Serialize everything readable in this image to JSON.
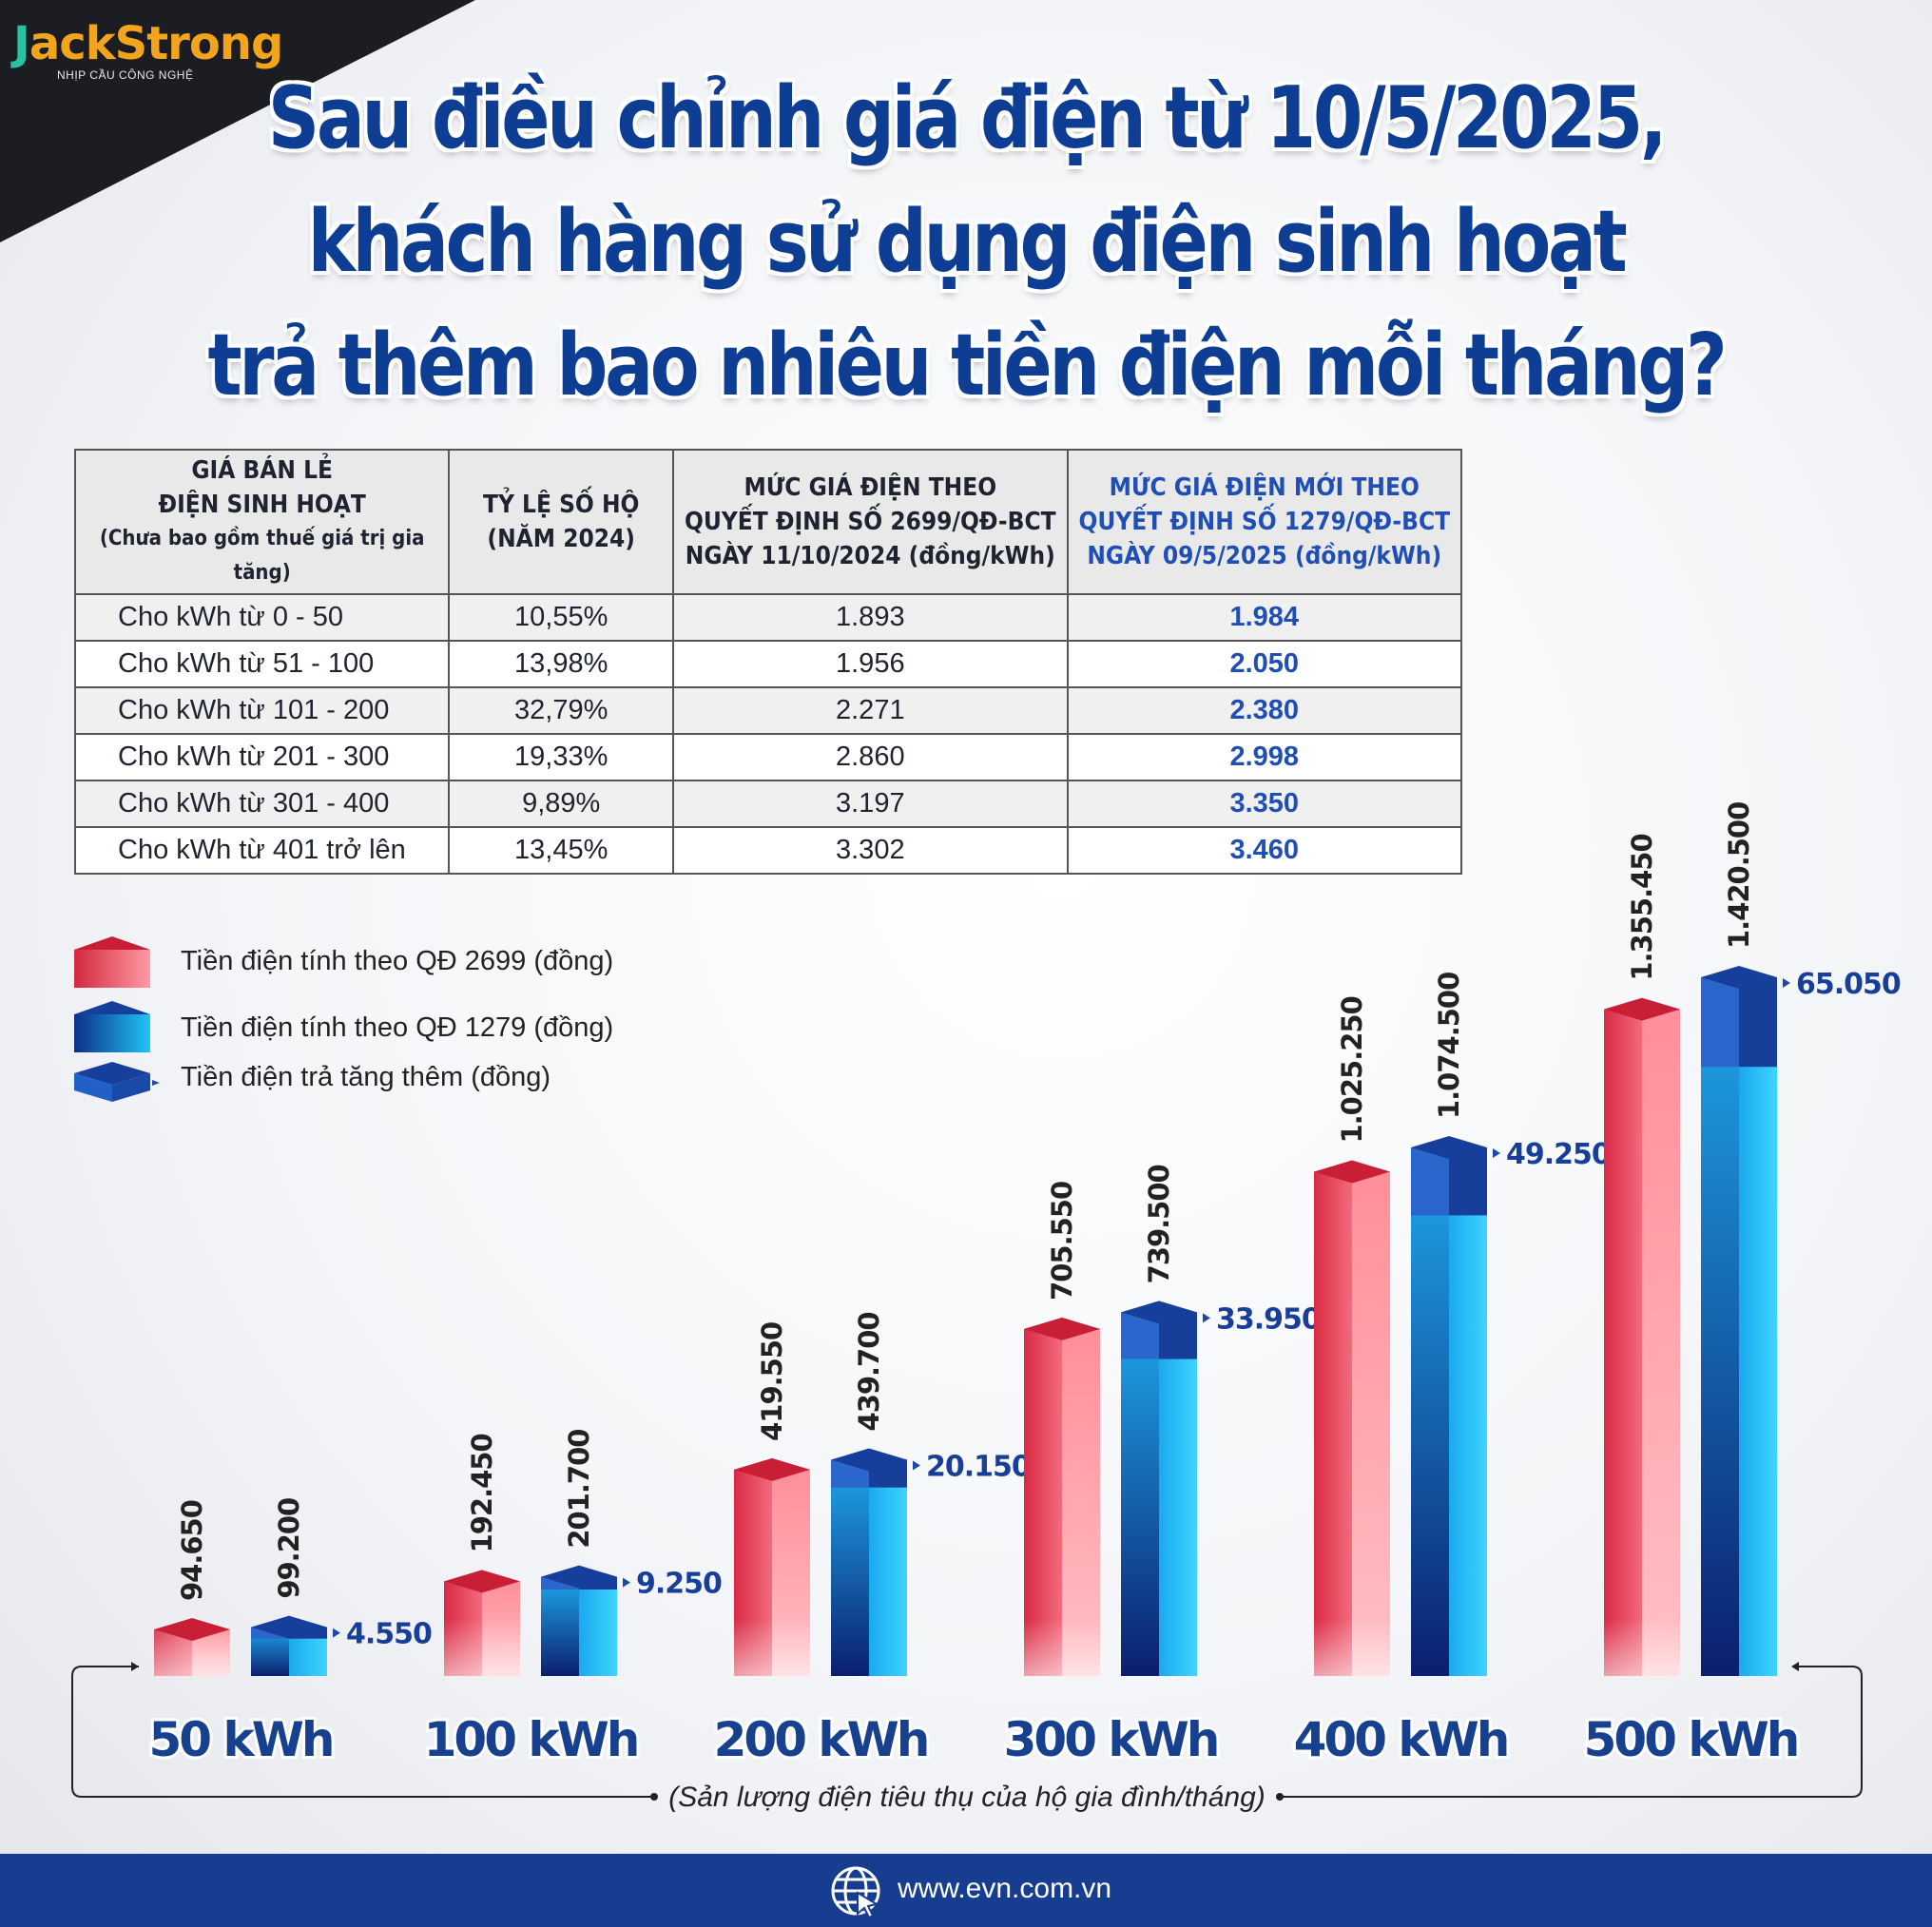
{
  "logo": {
    "brand": "JackStrong",
    "tagline": "NHỊP CẦU CÔNG NGHỆ"
  },
  "title": {
    "lines": [
      "Sau điều chỉnh giá điện từ 10/5/2025,",
      "khách hàng sử dụng điện sinh hoạt",
      "trả thêm bao nhiêu tiền điện mỗi tháng?"
    ]
  },
  "table": {
    "headers": [
      {
        "lines": [
          "GIÁ BÁN LẺ",
          "ĐIỆN SINH HOẠT"
        ],
        "note": "(Chưa bao gồm thuế giá trị gia tăng)"
      },
      {
        "lines": [
          "TỶ LỆ SỐ HỘ",
          "(NĂM 2024)"
        ]
      },
      {
        "lines": [
          "MỨC GIÁ ĐIỆN THEO",
          "QUYẾT ĐỊNH SỐ 2699/QĐ-BCT",
          "NGÀY 11/10/2024 (đồng/kWh)"
        ]
      },
      {
        "lines": [
          "MỨC GIÁ ĐIỆN MỚI THEO",
          "QUYẾT ĐỊNH SỐ 1279/QĐ-BCT",
          "NGÀY 09/5/2025 (đồng/kWh)"
        ]
      }
    ],
    "rows": [
      [
        "Cho kWh từ 0 - 50",
        "10,55%",
        "1.893",
        "1.984"
      ],
      [
        "Cho kWh từ  51 - 100",
        "13,98%",
        "1.956",
        "2.050"
      ],
      [
        "Cho kWh từ 101 - 200",
        "32,79%",
        "2.271",
        "2.380"
      ],
      [
        "Cho kWh từ 201 - 300",
        "19,33%",
        "2.860",
        "2.998"
      ],
      [
        "Cho kWh từ 301 - 400",
        "9,89%",
        "3.197",
        "3.350"
      ],
      [
        "Cho kWh từ 401 trở lên",
        "13,45%",
        "3.302",
        "3.460"
      ]
    ]
  },
  "chart_data": {
    "type": "bar",
    "categories": [
      "50 kWh",
      "100 kWh",
      "200 kWh",
      "300 kWh",
      "400 kWh",
      "500 kWh"
    ],
    "series": [
      {
        "name": "Tiền điện tính theo QĐ 2699 (đồng)",
        "values": [
          94650,
          192450,
          419550,
          705550,
          1025250,
          1355450
        ],
        "labels": [
          "94.650",
          "192.450",
          "419.550",
          "705.550",
          "1.025.250",
          "1.355.450"
        ],
        "color": "#e8475c"
      },
      {
        "name": "Tiền điện tính theo QĐ 1279 (đồng)",
        "values": [
          99200,
          201700,
          439700,
          739500,
          1074500,
          1420500
        ],
        "labels": [
          "99.200",
          "201.700",
          "439.700",
          "739.500",
          "1.074.500",
          "1.420.500"
        ],
        "color": "#1aa6ea"
      },
      {
        "name": "Tiền điện trả tăng thêm (đồng)",
        "values": [
          4550,
          9250,
          20150,
          33950,
          49250,
          65050
        ],
        "labels": [
          "4.550",
          "9.250",
          "20.150",
          "33.950",
          "49.250",
          "65.050"
        ],
        "color": "#1a4aa8"
      }
    ],
    "xlabel": "(Sản lượng điện tiêu thụ của hộ gia đình/tháng)",
    "ylim": [
      0,
      1420500
    ],
    "grid": false,
    "legend": "left"
  },
  "footer": {
    "url": "www.evn.com.vn"
  }
}
